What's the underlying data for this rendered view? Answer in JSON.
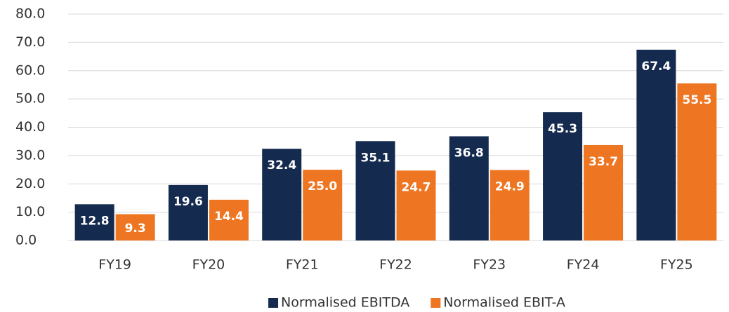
{
  "chart_data": {
    "type": "bar",
    "categories": [
      "FY19",
      "FY20",
      "FY21",
      "FY22",
      "FY23",
      "FY24",
      "FY25"
    ],
    "series": [
      {
        "name": "Normalised EBITDA",
        "color": "#142a4e",
        "values": [
          12.8,
          19.6,
          32.4,
          35.1,
          36.8,
          45.3,
          67.4
        ],
        "value_labels": [
          "12.8",
          "19.6",
          "32.4",
          "35.1",
          "36.8",
          "45.3",
          "67.4"
        ]
      },
      {
        "name": "Normalised EBIT-A",
        "color": "#ee7623",
        "values": [
          9.3,
          14.4,
          25.0,
          24.7,
          24.9,
          33.7,
          55.5
        ],
        "value_labels": [
          "9.3",
          "14.4",
          "25.0",
          "24.7",
          "24.9",
          "33.7",
          "55.5"
        ]
      }
    ],
    "ylim": [
      0,
      80
    ],
    "yticks": [
      {
        "value": 0,
        "label": "0.0"
      },
      {
        "value": 10,
        "label": "10.0"
      },
      {
        "value": 20,
        "label": "20.0"
      },
      {
        "value": 30,
        "label": "30.0"
      },
      {
        "value": 40,
        "label": "40.0"
      },
      {
        "value": 50,
        "label": "50.0"
      },
      {
        "value": 60,
        "label": "60.0"
      },
      {
        "value": 70,
        "label": "70.0"
      },
      {
        "value": 80,
        "label": "80.0"
      }
    ],
    "grid": true,
    "legend": "bottom"
  }
}
